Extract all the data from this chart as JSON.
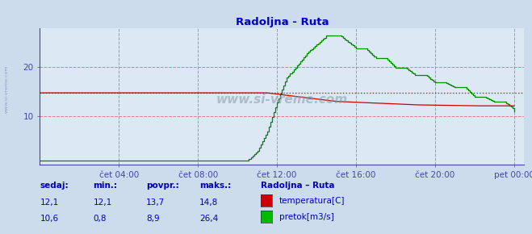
{
  "title": "Radoljna - Ruta",
  "title_color": "#0000cc",
  "bg_color": "#ccdcec",
  "plot_bg_color": "#dce8f4",
  "grid_color": "#dd6666",
  "axis_color": "#4444aa",
  "x_tick_labels": [
    "čet 04:00",
    "čet 08:00",
    "čet 12:00",
    "čet 16:00",
    "čet 20:00",
    "pet 00:00"
  ],
  "x_tick_positions": [
    4,
    8,
    12,
    16,
    20,
    24
  ],
  "ylim": [
    0,
    28
  ],
  "xlim": [
    0,
    24.5
  ],
  "y_ticks": [
    10,
    20
  ],
  "watermark": "www.si-vreme.com",
  "temp_color": "#cc0000",
  "flow_color": "#008800",
  "sidebar_text": "www.si-vreme.com",
  "legend_title": "Radoljna – Ruta",
  "legend_items": [
    "temperatura[C]",
    "pretok[m3/s]"
  ],
  "legend_colors": [
    "#cc0000",
    "#00bb00"
  ],
  "table_headers": [
    "sedaj:",
    "min.:",
    "povpr.:",
    "maks.:"
  ],
  "table_values_temp": [
    "12,1",
    "12,1",
    "13,7",
    "14,8"
  ],
  "table_values_flow": [
    "10,6",
    "0,8",
    "8,9",
    "26,4"
  ],
  "table_color": "#0000bb",
  "temp_ref_y": 14.8
}
